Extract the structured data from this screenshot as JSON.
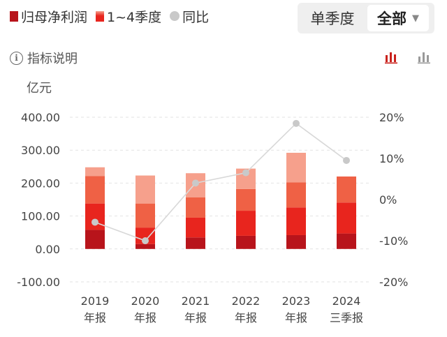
{
  "legend": {
    "net_profit": "归母净利润",
    "quarters": "1~4季度",
    "yoy": "同比"
  },
  "period_selector": {
    "quarterly": "单季度",
    "all": "全部"
  },
  "info_link": "指标说明",
  "unit": "亿元",
  "colors": {
    "q1": "#b8141b",
    "q2": "#e8251e",
    "q3": "#ef6145",
    "q4": "#f6a08c",
    "yoy_line": "#d8d8d8",
    "yoy_dot": "#c9c9c9",
    "toggle_active": "#c9211c",
    "toggle_inactive": "#9a9a9a"
  },
  "icons": {
    "info": "info-circle-icon",
    "stacked_toggle": "stacked-bar-chart-icon",
    "grouped_toggle": "grouped-bar-chart-icon",
    "dropdown": "caret-down-icon"
  },
  "chart_data": {
    "type": "bar",
    "stacked": true,
    "categories": [
      "2019",
      "2020",
      "2021",
      "2022",
      "2023",
      "2024"
    ],
    "category_sublabels": [
      "年报",
      "年报",
      "年报",
      "年报",
      "年报",
      "三季报"
    ],
    "series": [
      {
        "name": "Q1",
        "values": [
          58,
          15,
          35,
          40,
          42,
          47
        ]
      },
      {
        "name": "Q2",
        "values": [
          80,
          50,
          60,
          76,
          84,
          94
        ]
      },
      {
        "name": "Q3",
        "values": [
          83,
          73,
          62,
          66,
          76,
          79
        ]
      },
      {
        "name": "Q4",
        "values": [
          27,
          85,
          73,
          62,
          90,
          0
        ]
      }
    ],
    "yoy": {
      "name": "同比",
      "unit": "%",
      "values": [
        -5.5,
        -10,
        4,
        6.5,
        18.5,
        9.5
      ]
    },
    "ylim": [
      -100,
      400
    ],
    "yticks": [
      "400.00",
      "300.00",
      "200.00",
      "100.00",
      "0.00",
      "-100.00"
    ],
    "y2lim": [
      -20,
      20
    ],
    "y2ticks": [
      "20%",
      "10%",
      "0%",
      "-10%",
      "-20%"
    ],
    "grid": true,
    "legend_position": "top-left"
  }
}
